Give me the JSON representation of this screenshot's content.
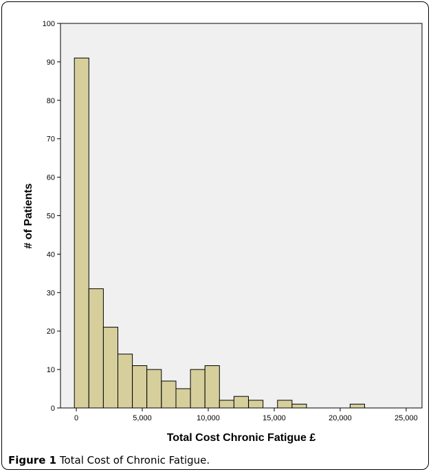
{
  "caption": {
    "label": "Figure 1",
    "text": "Total Cost of Chronic Fatigue."
  },
  "chart_data": {
    "type": "bar",
    "subtype": "histogram",
    "xlabel": "Total Cost Chronic Fatigue £",
    "ylabel": "# of Patients",
    "xlim": [
      -1200,
      26200
    ],
    "ylim": [
      0,
      100
    ],
    "x_ticks": [
      0,
      5000,
      10000,
      15000,
      20000,
      25000
    ],
    "x_tick_labels": [
      "0",
      "5,000",
      "10,000",
      "15,000",
      "20,000",
      "25,000"
    ],
    "y_ticks": [
      0,
      10,
      20,
      30,
      40,
      50,
      60,
      70,
      80,
      90,
      100
    ],
    "bin_width": 1100,
    "bins": [
      {
        "start": -150,
        "value": 91
      },
      {
        "start": 950,
        "value": 31
      },
      {
        "start": 2050,
        "value": 21
      },
      {
        "start": 3150,
        "value": 14
      },
      {
        "start": 4250,
        "value": 11
      },
      {
        "start": 5350,
        "value": 10
      },
      {
        "start": 6450,
        "value": 7
      },
      {
        "start": 7550,
        "value": 5
      },
      {
        "start": 8650,
        "value": 10
      },
      {
        "start": 9750,
        "value": 11
      },
      {
        "start": 10850,
        "value": 2
      },
      {
        "start": 11950,
        "value": 3
      },
      {
        "start": 13050,
        "value": 2
      },
      {
        "start": 14150,
        "value": 0
      },
      {
        "start": 15250,
        "value": 2
      },
      {
        "start": 16350,
        "value": 1
      },
      {
        "start": 17450,
        "value": 0
      },
      {
        "start": 18550,
        "value": 0
      },
      {
        "start": 19650,
        "value": 0
      },
      {
        "start": 20750,
        "value": 1
      }
    ],
    "grid": false,
    "colors": {
      "bar_fill": "#d6cf9c",
      "plot_background": "#f0f0f0",
      "bar_edge": "#000000"
    }
  }
}
